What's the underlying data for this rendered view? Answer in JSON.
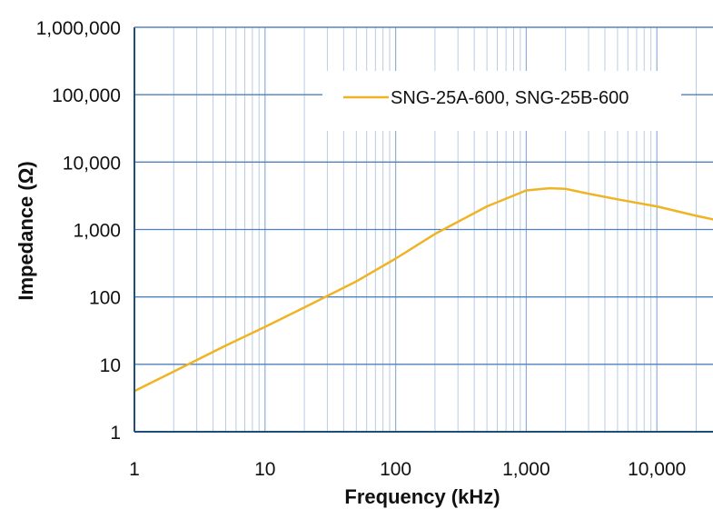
{
  "chart_data": {
    "type": "line",
    "xlabel": "Frequency (kHz)",
    "ylabel": "Impedance (Ω)",
    "x_scale": "log",
    "y_scale": "log",
    "xlim": [
      1,
      30000
    ],
    "ylim": [
      1,
      1000000
    ],
    "x_ticks": [
      1,
      10,
      100,
      1000,
      10000
    ],
    "x_tick_labels": [
      "1",
      "10",
      "100",
      "1,000",
      "10,000"
    ],
    "y_ticks": [
      1,
      10,
      100,
      1000,
      10000,
      100000,
      1000000
    ],
    "y_tick_labels": [
      "1",
      "10",
      "100",
      "1,000",
      "10,000",
      "100,000",
      "1,000,000"
    ],
    "grid": true,
    "legend_position": "top-right",
    "series": [
      {
        "name": "SNG-25A-600, SNG-25B-600",
        "color": "#F0B323",
        "x": [
          1,
          2,
          5,
          10,
          20,
          50,
          100,
          200,
          300,
          500,
          1000,
          1500,
          2000,
          3000,
          5000,
          10000,
          20000,
          30000
        ],
        "y": [
          4,
          7.8,
          19,
          36,
          70,
          170,
          370,
          860,
          1300,
          2200,
          3800,
          4100,
          4000,
          3400,
          2800,
          2200,
          1600,
          1350
        ]
      }
    ]
  }
}
